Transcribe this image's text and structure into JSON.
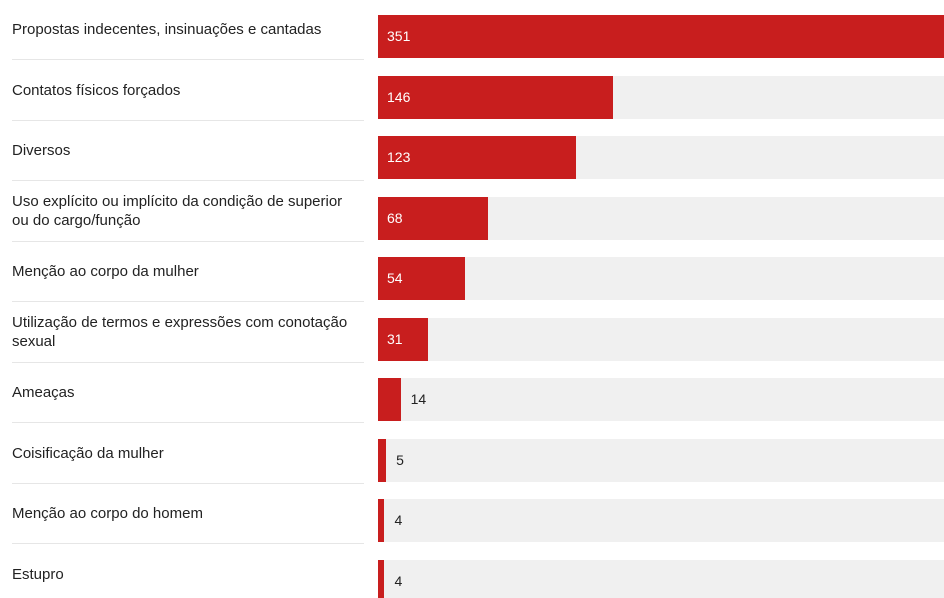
{
  "chart_data": {
    "type": "bar",
    "orientation": "horizontal",
    "categories": [
      "Propostas indecentes, insinuações e cantadas",
      "Contatos físicos forçados",
      "Diversos",
      "Uso explícito ou implícito da condição de superior ou do cargo/função",
      "Menção ao corpo da mulher",
      "Utilização de termos e expressões com conotação sexual",
      "Ameaças",
      "Coisificação da mulher",
      "Menção ao corpo do homem",
      "Estupro"
    ],
    "values": [
      351,
      146,
      123,
      68,
      54,
      31,
      14,
      5,
      4,
      4
    ],
    "color": "#c81e1e"
  }
}
